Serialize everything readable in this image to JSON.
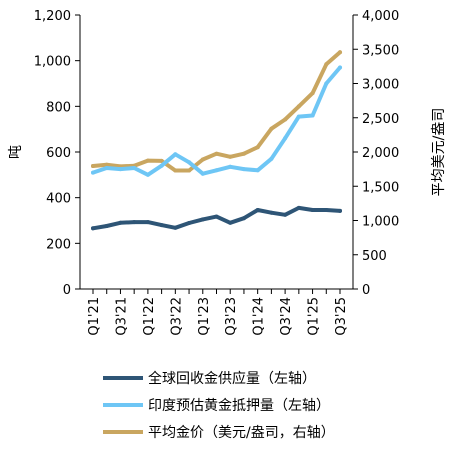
{
  "chart_data": {
    "type": "line",
    "title": "",
    "categories": [
      "Q1'21",
      "Q2'21",
      "Q3'21",
      "Q4'21",
      "Q1'22",
      "Q2'22",
      "Q3'22",
      "Q4'22",
      "Q1'23",
      "Q2'23",
      "Q3'23",
      "Q4'23",
      "Q1'24",
      "Q2'24",
      "Q3'24",
      "Q4'24",
      "Q1'25",
      "Q2'25",
      "Q3'25"
    ],
    "x_tick_labels": [
      "Q1'21",
      "Q3'21",
      "Q1'22",
      "Q3'22",
      "Q1'23",
      "Q3'23",
      "Q1'24",
      "Q3'24",
      "Q1'25",
      "Q3'25"
    ],
    "y_left": {
      "label": "吨",
      "range": [
        0,
        1200
      ],
      "ticks": [
        0,
        200,
        400,
        600,
        800,
        1000,
        1200
      ],
      "tick_labels": [
        "0",
        "200",
        "400",
        "600",
        "800",
        "1,000",
        "1,200"
      ]
    },
    "y_right": {
      "label": "平均美元/盎司",
      "range": [
        0,
        4000
      ],
      "ticks": [
        0,
        500,
        1000,
        1500,
        2000,
        2500,
        3000,
        3500,
        4000
      ],
      "tick_labels": [
        "0",
        "500",
        "1,000",
        "1,500",
        "2,000",
        "2,500",
        "3,000",
        "3,500",
        "4,000"
      ]
    },
    "grid": false,
    "legend_position": "bottom",
    "series": [
      {
        "name": "全球回收金供应量（左轴）",
        "axis": "left",
        "color": "#2E5576",
        "values": [
          266,
          276,
          290,
          293,
          293,
          280,
          268,
          289,
          305,
          317,
          290,
          310,
          346,
          334,
          325,
          355,
          346,
          346,
          342
        ]
      },
      {
        "name": "印度预估黄金抵押量（左轴）",
        "axis": "left",
        "color": "#6EC6F5",
        "values": [
          510,
          530,
          525,
          530,
          500,
          540,
          590,
          555,
          505,
          520,
          535,
          525,
          520,
          570,
          660,
          755,
          760,
          900,
          970
        ]
      },
      {
        "name": "平均金价（美元/盎司，右轴）",
        "axis": "right",
        "color": "#C9A660",
        "values": [
          1795,
          1815,
          1790,
          1800,
          1875,
          1870,
          1730,
          1730,
          1890,
          1975,
          1930,
          1975,
          2070,
          2340,
          2475,
          2665,
          2860,
          3280,
          3455
        ]
      }
    ]
  }
}
